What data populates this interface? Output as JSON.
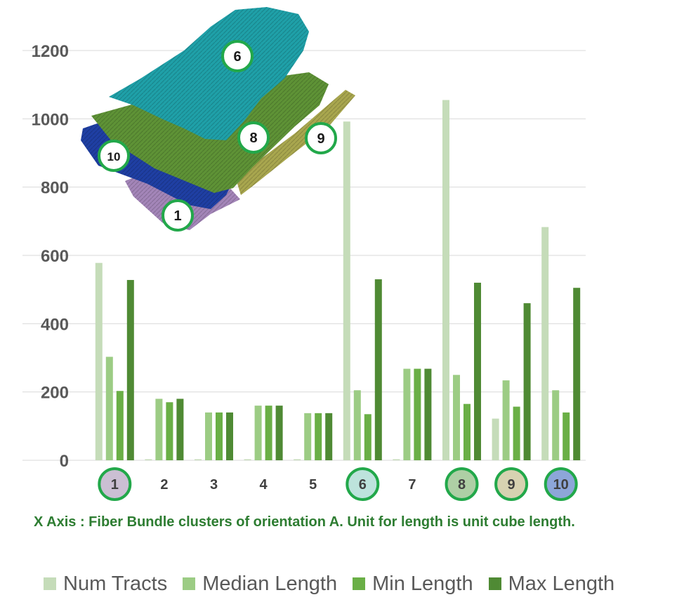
{
  "chart_data": {
    "type": "bar",
    "categories": [
      "1",
      "2",
      "3",
      "4",
      "5",
      "6",
      "7",
      "8",
      "9",
      "10"
    ],
    "series": [
      {
        "name": "Num Tracts",
        "color": "#c5dcb9",
        "values": [
          578,
          3,
          3,
          3,
          3,
          992,
          3,
          1055,
          122,
          683
        ]
      },
      {
        "name": "Median Length",
        "color": "#9ccc84",
        "values": [
          303,
          180,
          140,
          160,
          138,
          205,
          268,
          250,
          234,
          205
        ]
      },
      {
        "name": "Min Length",
        "color": "#6aaf46",
        "values": [
          203,
          170,
          140,
          160,
          138,
          135,
          268,
          165,
          157,
          140
        ]
      },
      {
        "name": "Max Length",
        "color": "#4f8a34",
        "values": [
          528,
          180,
          140,
          160,
          138,
          530,
          268,
          520,
          460,
          505
        ]
      }
    ],
    "ylim": [
      0,
      1200
    ],
    "yticks": [
      0,
      200,
      400,
      600,
      800,
      1000,
      1200
    ],
    "grid": true,
    "legend_position": "bottom",
    "highlighted_categories": {
      "1": "#cbbfd3",
      "6": "#bde3dc",
      "8": "#aecfa5",
      "9": "#d7d2b1",
      "10": "#8da6d9"
    },
    "caption": "X Axis : Fiber Bundle clusters of orientation A.  Unit for length is unit cube length."
  },
  "inset": {
    "description": "3D rendering of fiber bundle clusters",
    "labels": [
      "6",
      "8",
      "9",
      "10",
      "1"
    ],
    "colors": {
      "6": "#1fa0a8",
      "8": "#5e9236",
      "9": "#a8a64e",
      "10": "#1f3fa3",
      "1": "#a385b8"
    }
  }
}
